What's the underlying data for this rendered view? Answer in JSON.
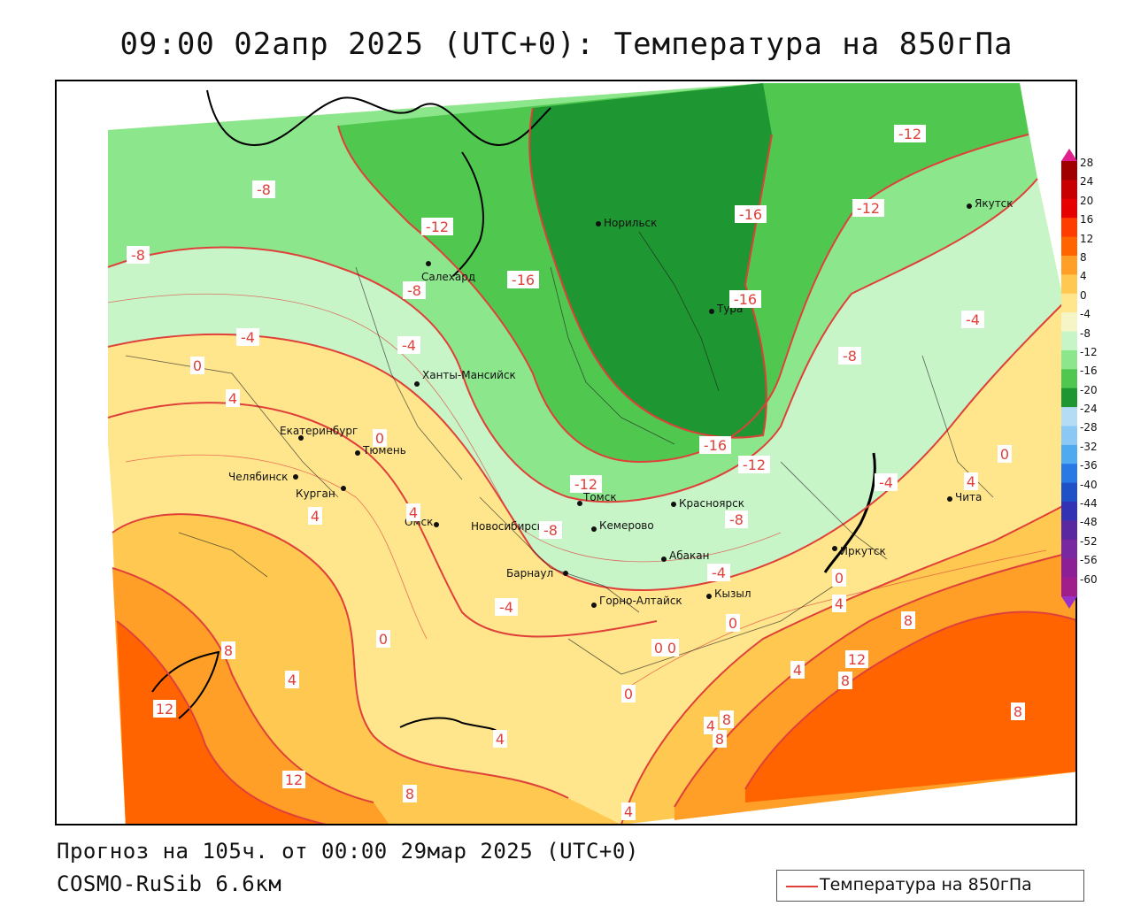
{
  "title": "09:00 02апр 2025 (UTC+0): Температура на 850гПа",
  "forecast": "Прогноз на 105ч. от 00:00 29мар 2025 (UTC+0)",
  "model": "COSMO-RuSib 6.6км",
  "legend": {
    "label": "Температура на 850гПа",
    "line_color": "#e0403a"
  },
  "colorbar": {
    "ticks": [
      "28",
      "24",
      "20",
      "16",
      "12",
      "8",
      "4",
      "0",
      "-4",
      "-8",
      "-12",
      "-16",
      "-20",
      "-24",
      "-28",
      "-32",
      "-36",
      "-40",
      "-44",
      "-48",
      "-52",
      "-56",
      "-60"
    ],
    "colors": [
      "#a00000",
      "#c80000",
      "#e60000",
      "#ff3c00",
      "#ff6400",
      "#ff9f28",
      "#ffc850",
      "#ffe68c",
      "#f5f5c8",
      "#c8f5c8",
      "#8ce68c",
      "#50c850",
      "#1e9632",
      "#b4dcf5",
      "#8cc8f5",
      "#50aaf0",
      "#2878e6",
      "#1e50c8",
      "#3232b4",
      "#5a28a0",
      "#7828a0",
      "#8c1e96",
      "#a01e8c"
    ]
  },
  "cities": [
    {
      "name": "Норильск"
    },
    {
      "name": "Якутск"
    },
    {
      "name": "Салехард"
    },
    {
      "name": "Тура"
    },
    {
      "name": "Ханты-Мансийск"
    },
    {
      "name": "Екатеринбург"
    },
    {
      "name": "Тюмень"
    },
    {
      "name": "Челябинск"
    },
    {
      "name": "Курган"
    },
    {
      "name": "Омск"
    },
    {
      "name": "Новосибирск"
    },
    {
      "name": "Томск"
    },
    {
      "name": "Кемерово"
    },
    {
      "name": "Красноярск"
    },
    {
      "name": "Абакан"
    },
    {
      "name": "Барнаул"
    },
    {
      "name": "Горно-Алтайск"
    },
    {
      "name": "Кызыл"
    },
    {
      "name": "Иркутск"
    },
    {
      "name": "Чита"
    }
  ],
  "isotherm_labels": [
    "-12",
    "-8",
    "-12",
    "-16",
    "-16",
    "-12",
    "-8",
    "-8",
    "-4",
    "-16",
    "-4",
    "-8",
    "0",
    "-4",
    "4",
    "0",
    "-16",
    "-12",
    "-12",
    "0",
    "-4",
    "4",
    "4",
    "4",
    "-8",
    "-8",
    "-4",
    "0",
    "-4",
    "0",
    "4",
    "0",
    "8",
    "12",
    "8",
    "4",
    "4",
    "0",
    "0",
    "8",
    "4",
    "8",
    "8",
    "8",
    "12",
    "0",
    "4",
    "12",
    "8",
    "4"
  ]
}
